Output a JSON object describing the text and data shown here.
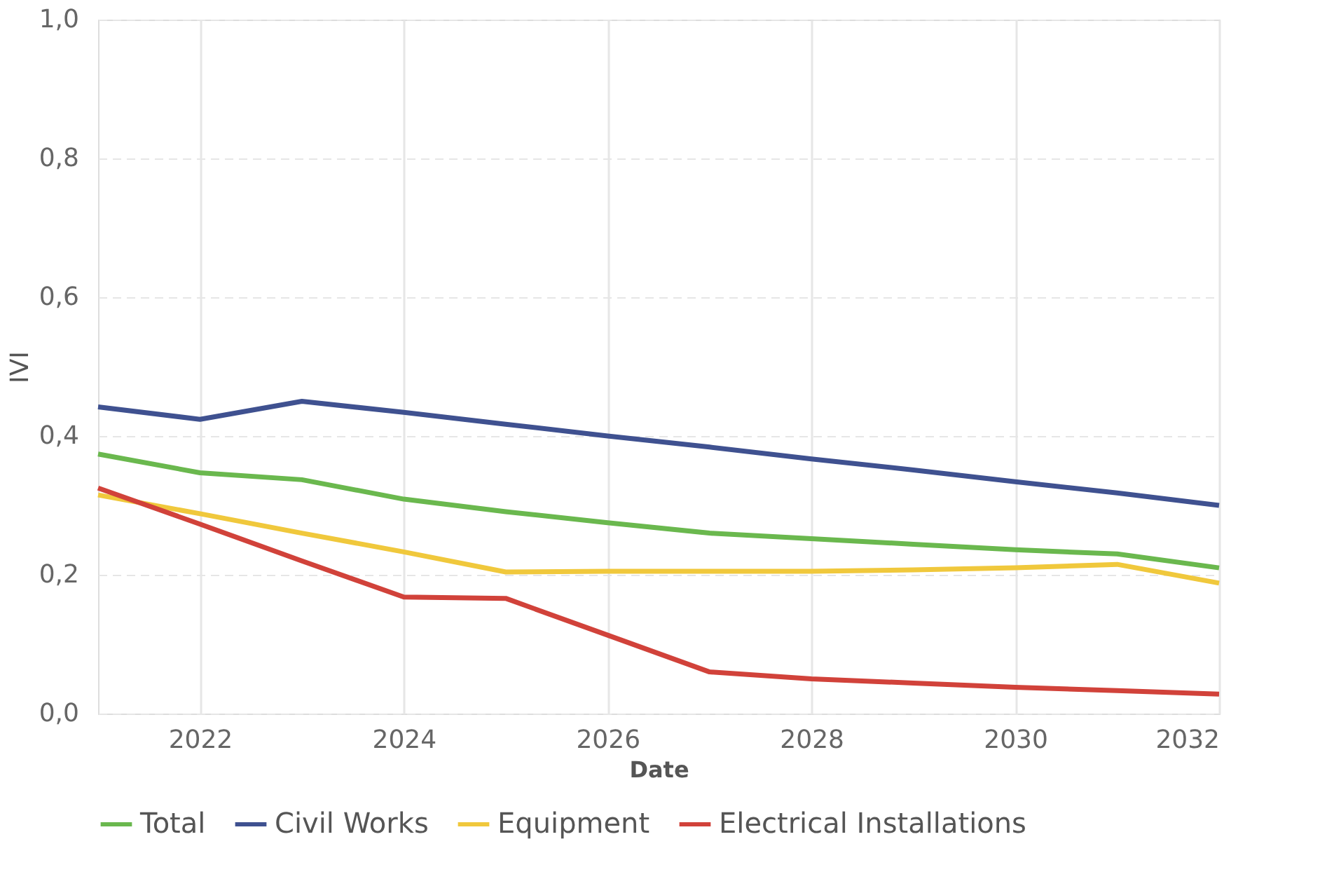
{
  "chart_data": {
    "type": "line",
    "xlabel": "Date",
    "ylabel": "IVI",
    "x": [
      2021,
      2022,
      2023,
      2024,
      2025,
      2026,
      2027,
      2028,
      2029,
      2030,
      2031,
      2032
    ],
    "series": [
      {
        "name": "Total",
        "color": "#6ab84e",
        "values": [
          0.374,
          0.347,
          0.337,
          0.309,
          0.291,
          0.275,
          0.26,
          0.252,
          0.244,
          0.236,
          0.23,
          0.21
        ]
      },
      {
        "name": "Civil Works",
        "color": "#3f5190",
        "values": [
          0.442,
          0.424,
          0.45,
          0.434,
          0.417,
          0.4,
          0.384,
          0.367,
          0.351,
          0.334,
          0.318,
          0.3
        ]
      },
      {
        "name": "Equipment",
        "color": "#f0c83c",
        "values": [
          0.315,
          0.288,
          0.26,
          0.233,
          0.204,
          0.205,
          0.205,
          0.205,
          0.207,
          0.21,
          0.215,
          0.188
        ]
      },
      {
        "name": "Electrical Installations",
        "color": "#d1423a",
        "values": [
          0.325,
          0.273,
          0.22,
          0.168,
          0.166,
          0.113,
          0.06,
          0.05,
          0.044,
          0.038,
          0.033,
          0.028
        ]
      }
    ],
    "xlim": [
      2021,
      2032
    ],
    "xticks": [
      2022,
      2024,
      2026,
      2028,
      2030,
      2032
    ],
    "ylim": [
      0,
      1
    ],
    "yticks": [
      {
        "value": 0,
        "label": "0,0"
      },
      {
        "value": 0.2,
        "label": "0,2"
      },
      {
        "value": 0.4,
        "label": "0,4"
      },
      {
        "value": 0.6,
        "label": "0,6"
      },
      {
        "value": 0.8,
        "label": "0,8"
      },
      {
        "value": 1,
        "label": "1,0"
      }
    ],
    "grid": true,
    "legend": "bottom",
    "marker": "none",
    "line_style": "solid"
  }
}
